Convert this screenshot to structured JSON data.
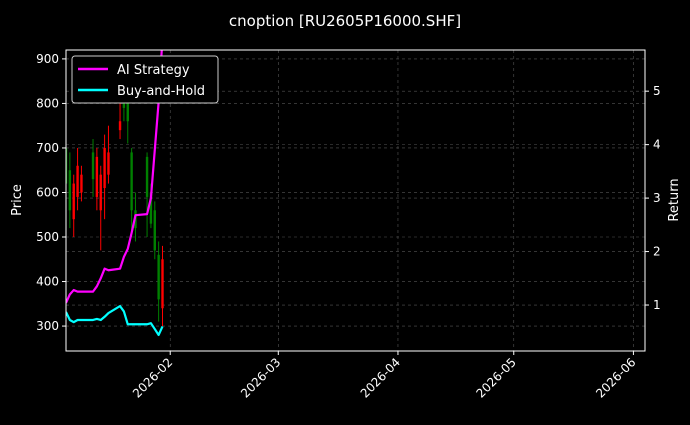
{
  "chart_data": {
    "type": "candlestick+line",
    "title": "cnoption [RU2605P16000.SHF]",
    "ylabel_left": "Price",
    "ylabel_right": "Return",
    "xlim": [
      "2026-01-05",
      "2026-06-04"
    ],
    "ylim_left": [
      244,
      920
    ],
    "ylim_right": [
      0.14,
      5.77
    ],
    "x_ticks": [
      {
        "date": "2026-02-01",
        "label": "2026-02"
      },
      {
        "date": "2026-03-01",
        "label": "2026-03"
      },
      {
        "date": "2026-04-01",
        "label": "2026-04"
      },
      {
        "date": "2026-05-01",
        "label": "2026-05"
      },
      {
        "date": "2026-06-01",
        "label": "2026-06"
      }
    ],
    "y_ticks_left": [
      300,
      400,
      500,
      600,
      700,
      800,
      900
    ],
    "y_ticks_right": [
      1,
      2,
      3,
      4,
      5
    ],
    "grid": true,
    "legend_position": "top-left",
    "colors": {
      "up": "#008000",
      "down": "#ff0000",
      "ai": "#ff00ff",
      "bh": "#00ffff",
      "grid": "#555555"
    },
    "dates": [
      "2026-01-05",
      "2026-01-06",
      "2026-01-07",
      "2026-01-08",
      "2026-01-09",
      "2026-01-12",
      "2026-01-13",
      "2026-01-14",
      "2026-01-15",
      "2026-01-16",
      "2026-01-19",
      "2026-01-20",
      "2026-01-21",
      "2026-01-22",
      "2026-01-23",
      "2026-01-26",
      "2026-01-27",
      "2026-01-28",
      "2026-01-29",
      "2026-01-30"
    ],
    "candles": [
      {
        "o": 620,
        "h": 730,
        "l": 560,
        "c": 700
      },
      {
        "o": 560,
        "h": 690,
        "l": 520,
        "c": 650
      },
      {
        "o": 620,
        "h": 640,
        "l": 500,
        "c": 540
      },
      {
        "o": 660,
        "h": 700,
        "l": 560,
        "c": 590
      },
      {
        "o": 640,
        "h": 660,
        "l": 580,
        "c": 600
      },
      {
        "o": 630,
        "h": 720,
        "l": 590,
        "c": 690
      },
      {
        "o": 680,
        "h": 700,
        "l": 560,
        "c": 590
      },
      {
        "o": 640,
        "h": 660,
        "l": 470,
        "c": 560
      },
      {
        "o": 700,
        "h": 730,
        "l": 540,
        "c": 610
      },
      {
        "o": 690,
        "h": 750,
        "l": 620,
        "c": 640
      },
      {
        "o": 760,
        "h": 800,
        "l": 720,
        "c": 740
      },
      {
        "o": 790,
        "h": 850,
        "l": 760,
        "c": 820
      },
      {
        "o": 760,
        "h": 830,
        "l": 710,
        "c": 800
      },
      {
        "o": 560,
        "h": 700,
        "l": 500,
        "c": 690
      },
      {
        "o": 520,
        "h": 600,
        "l": 490,
        "c": 560
      },
      {
        "o": 590,
        "h": 690,
        "l": 500,
        "c": 680
      },
      {
        "o": 530,
        "h": 620,
        "l": 520,
        "c": 600
      },
      {
        "o": 470,
        "h": 580,
        "l": 450,
        "c": 560
      },
      {
        "o": 360,
        "h": 490,
        "l": 310,
        "c": 460
      },
      {
        "o": 450,
        "h": 480,
        "l": 300,
        "c": 340
      }
    ],
    "series": [
      {
        "name": "AI Strategy",
        "values": [
          1.04,
          1.2,
          1.28,
          1.25,
          1.25,
          1.25,
          1.35,
          1.5,
          1.68,
          1.65,
          1.68,
          1.9,
          2.05,
          2.35,
          2.68,
          2.7,
          3.0,
          3.9,
          4.8,
          6.0
        ]
      },
      {
        "name": "Buy-and-Hold",
        "values": [
          0.87,
          0.72,
          0.68,
          0.72,
          0.72,
          0.72,
          0.74,
          0.72,
          0.78,
          0.85,
          0.98,
          0.88,
          0.64,
          0.64,
          0.64,
          0.64,
          0.66,
          0.55,
          0.44,
          0.6
        ]
      }
    ]
  }
}
